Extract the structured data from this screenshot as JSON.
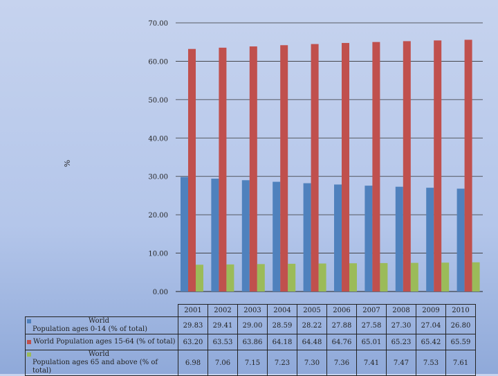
{
  "chart_data": {
    "type": "bar",
    "ylabel": "%",
    "ylim": [
      0,
      70
    ],
    "yticks": [
      "0.00",
      "10.00",
      "20.00",
      "30.00",
      "40.00",
      "50.00",
      "60.00",
      "70.00"
    ],
    "categories": [
      "2001",
      "2002",
      "2003",
      "2004",
      "2005",
      "2006",
      "2007",
      "2008",
      "2009",
      "2010"
    ],
    "series": [
      {
        "name": "World Population ages 0-14 (% of total)",
        "name_line1": "World",
        "name_line2": "Population ages 0-14 (% of total)",
        "color": "#4f81bd",
        "values": [
          29.83,
          29.41,
          29.0,
          28.59,
          28.22,
          27.88,
          27.58,
          27.3,
          27.04,
          26.8
        ],
        "labels": [
          "29.83",
          "29.41",
          "29.00",
          "28.59",
          "28.22",
          "27.88",
          "27.58",
          "27.30",
          "27.04",
          "26.80"
        ]
      },
      {
        "name": "World Population ages 15-64 (% of total)",
        "name_line1": "World Population ages 15-64 (% of total)",
        "name_line2": "",
        "color": "#c0504d",
        "values": [
          63.2,
          63.53,
          63.86,
          64.18,
          64.48,
          64.76,
          65.01,
          65.23,
          65.42,
          65.59
        ],
        "labels": [
          "63.20",
          "63.53",
          "63.86",
          "64.18",
          "64.48",
          "64.76",
          "65.01",
          "65.23",
          "65.42",
          "65.59"
        ]
      },
      {
        "name": "World Population ages 65 and above (% of total)",
        "name_line1": "World",
        "name_line2": "Population ages 65 and above (% of total)",
        "color": "#9bbb59",
        "values": [
          6.98,
          7.06,
          7.15,
          7.23,
          7.3,
          7.36,
          7.41,
          7.47,
          7.53,
          7.61
        ],
        "labels": [
          "6.98",
          "7.06",
          "7.15",
          "7.23",
          "7.30",
          "7.36",
          "7.41",
          "7.47",
          "7.53",
          "7.61"
        ]
      }
    ],
    "grid": true,
    "legend": "data-table"
  }
}
